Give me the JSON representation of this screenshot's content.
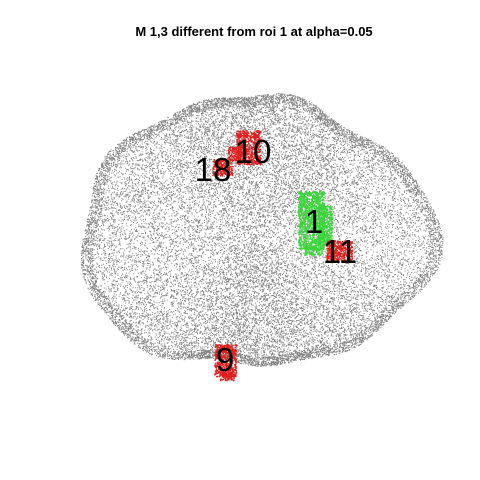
{
  "figure": {
    "title": "M 1,3 different from roi 1 at alpha=0.05"
  },
  "colors": {
    "background": "#ffffff",
    "points": "#808080",
    "reference_roi": "#3cd43c",
    "different_roi": "#e01e1e",
    "label": "#000000"
  },
  "rois": [
    {
      "id": "1",
      "label": "1",
      "status": "reference"
    },
    {
      "id": "10",
      "label": "10",
      "status": "different"
    },
    {
      "id": "18",
      "label": "18",
      "status": "different"
    },
    {
      "id": "11",
      "label": "11",
      "status": "different"
    },
    {
      "id": "9",
      "label": "9",
      "status": "different"
    }
  ]
}
